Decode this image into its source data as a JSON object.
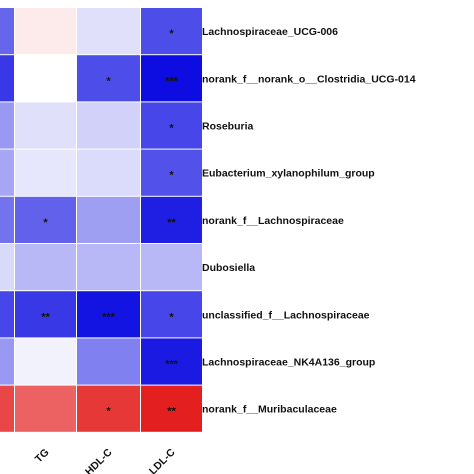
{
  "chart_data": {
    "type": "heatmap",
    "title": "",
    "xlabel": "",
    "ylabel": "",
    "columns": [
      "",
      "TG",
      "HDL-C",
      "LDL-C"
    ],
    "rows": [
      "Lachnospiraceae_UCG-006",
      "norank_f__norank_o__Clostridia_UCG-014",
      "Roseburia",
      "Eubacterium_xylanophilum_group",
      "norank_f__Lachnospiraceae",
      "Dubosiella",
      "unclassified_f__Lachnospiraceae",
      "Lachnospiraceae_NK4A136_group",
      "norank_f__Muribaculaceae"
    ],
    "values": [
      [
        -0.6,
        0.08,
        -0.12,
        -0.7
      ],
      [
        -0.78,
        0.0,
        -0.7,
        -0.95
      ],
      [
        -0.4,
        -0.12,
        -0.18,
        -0.72
      ],
      [
        -0.35,
        -0.1,
        -0.14,
        -0.68
      ],
      [
        -0.55,
        -0.62,
        -0.38,
        -0.88
      ],
      [
        -0.15,
        -0.28,
        -0.28,
        -0.28
      ],
      [
        -0.72,
        -0.78,
        -0.92,
        -0.72
      ],
      [
        -0.4,
        -0.05,
        -0.5,
        -0.9
      ],
      [
        0.72,
        0.62,
        0.78,
        0.88
      ]
    ],
    "significance": [
      [
        "",
        "",
        "",
        "*"
      ],
      [
        "",
        "",
        "*",
        "***"
      ],
      [
        "",
        "",
        "",
        "*"
      ],
      [
        "",
        "",
        "",
        "*"
      ],
      [
        "",
        "*",
        "",
        "**"
      ],
      [
        "",
        "",
        "",
        ""
      ],
      [
        "",
        "**",
        "***",
        "*"
      ],
      [
        "",
        "",
        "",
        "***"
      ],
      [
        "",
        "",
        "*",
        "**"
      ]
    ],
    "color_scale": {
      "negative": "#0000e0",
      "zero": "#ffffff",
      "positive": "#e00000",
      "range": [
        -1,
        1
      ]
    }
  }
}
